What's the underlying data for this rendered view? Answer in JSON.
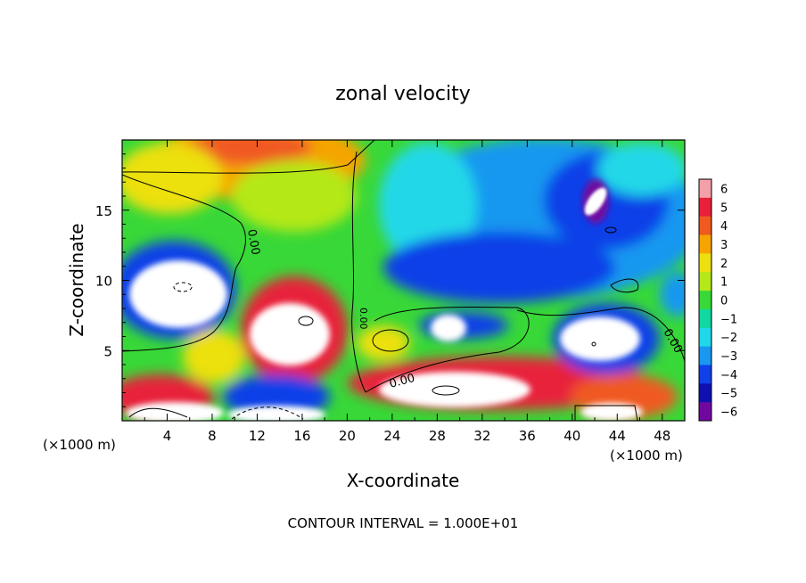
{
  "chart_data": {
    "type": "heatmap",
    "title": "zonal velocity",
    "xlabel": "X-coordinate",
    "ylabel": "Z-coordinate",
    "x_unit": "(×1000 m)",
    "y_unit": "(×1000 m)",
    "footer": "CONTOUR INTERVAL = 1.000E+01",
    "xlim": [
      0,
      50
    ],
    "ylim": [
      0,
      20
    ],
    "x_ticks": [
      4,
      8,
      12,
      16,
      20,
      24,
      28,
      32,
      36,
      40,
      44,
      48
    ],
    "y_ticks": [
      5,
      10,
      15
    ],
    "colorbar": {
      "levels": [
        "6",
        "5",
        "4",
        "3",
        "2",
        "1",
        "0",
        "−1",
        "−2",
        "−3",
        "−4",
        "−5",
        "−6"
      ],
      "colors": [
        "#f4a0a8",
        "#e8203a",
        "#f05a20",
        "#f5a400",
        "#ece010",
        "#b4e818",
        "#38d838",
        "#10d8a0",
        "#20d8e8",
        "#1898f0",
        "#1040e8",
        "#1010b0",
        "#7008a0"
      ]
    },
    "contour_labels": [
      "0.00",
      "0.00",
      "0.00",
      "0.00"
    ],
    "colors": {
      "out_of_range": "#ffffff",
      "contour": "#000000"
    }
  }
}
